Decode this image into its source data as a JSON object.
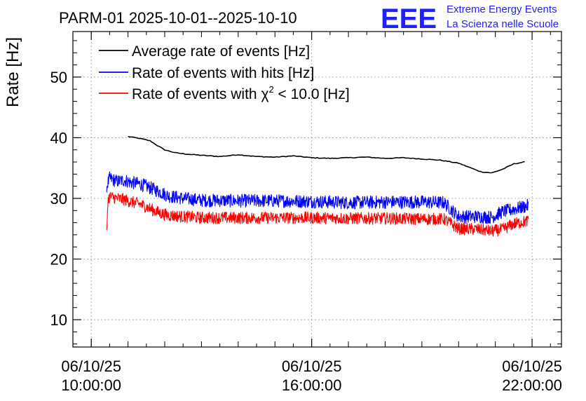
{
  "chart_data": {
    "type": "line",
    "title": "PARM-01 2025-10-01--2025-10-10",
    "ylabel": "Rate [Hz]",
    "xlabel": "",
    "xlim_hours": [
      9.5,
      22.8
    ],
    "ylim": [
      5.5,
      57.5
    ],
    "yticks": [
      10,
      20,
      30,
      40,
      50
    ],
    "xticks": [
      {
        "hour": 10,
        "date": "06/10/25",
        "time": "10:00:00"
      },
      {
        "hour": 16,
        "date": "06/10/25",
        "time": "16:00:00"
      },
      {
        "hour": 22,
        "date": "06/10/25",
        "time": "22:00:00"
      }
    ],
    "grid": true,
    "legend_position": "top-left",
    "series": [
      {
        "name": "Average rate of events [Hz]",
        "color": "#000000",
        "hours": [
          11.0,
          11.3,
          11.6,
          11.8,
          12.0,
          12.3,
          12.6,
          13.0,
          13.5,
          14.0,
          14.5,
          15.0,
          15.5,
          16.0,
          16.5,
          17.0,
          17.5,
          18.0,
          18.5,
          19.0,
          19.5,
          20.0,
          20.3,
          20.6,
          20.9,
          21.2,
          21.5,
          21.8
        ],
        "values": [
          40.2,
          39.9,
          39.5,
          38.7,
          38.0,
          37.5,
          37.3,
          37.1,
          36.9,
          37.2,
          36.9,
          36.8,
          37.0,
          36.7,
          36.6,
          36.7,
          36.8,
          36.6,
          36.7,
          36.5,
          36.3,
          35.8,
          35.1,
          34.4,
          34.2,
          34.8,
          35.7,
          36.0
        ]
      },
      {
        "name": "Rate of events with hits [Hz]",
        "color": "#0000ff",
        "hours": [
          10.42,
          10.5,
          10.7,
          10.9,
          11.1,
          11.3,
          11.5,
          11.7,
          11.9,
          12.1,
          12.5,
          13.0,
          14.0,
          15.0,
          16.0,
          17.0,
          18.0,
          19.0,
          19.6,
          20.0,
          20.5,
          20.9,
          21.2,
          21.5,
          21.9
        ],
        "values": [
          32.0,
          33.3,
          32.8,
          33.0,
          32.6,
          32.4,
          32.0,
          31.5,
          31.0,
          30.4,
          30.0,
          29.7,
          29.6,
          29.6,
          29.5,
          29.3,
          29.4,
          29.4,
          29.3,
          27.0,
          27.0,
          26.9,
          27.8,
          28.2,
          28.8
        ],
        "noise": 1.1
      },
      {
        "name": "Rate of events with χ² < 10.0 [Hz]",
        "legend_prefix": "Rate of events with ",
        "legend_chi": "χ",
        "legend_sup": "2",
        "legend_suffix": " < 10.0 [Hz]",
        "color": "#ff0000",
        "hours": [
          10.42,
          10.45,
          10.5,
          10.7,
          10.9,
          11.1,
          11.3,
          11.5,
          11.7,
          11.9,
          12.1,
          12.5,
          13.0,
          14.0,
          15.0,
          16.0,
          17.0,
          18.0,
          19.0,
          19.6,
          20.0,
          20.5,
          20.9,
          21.2,
          21.5,
          21.9
        ],
        "values": [
          24.0,
          29.5,
          30.3,
          30.0,
          29.8,
          29.4,
          29.1,
          28.6,
          28.0,
          27.5,
          27.2,
          27.0,
          26.8,
          26.8,
          26.8,
          26.8,
          26.7,
          26.7,
          26.6,
          26.6,
          25.0,
          24.9,
          24.6,
          24.9,
          25.8,
          26.3
        ],
        "noise": 1.0
      }
    ]
  },
  "branding": {
    "logo_text": "EEE",
    "line1": "Extreme Energy Events",
    "line2": "La Scienza nelle Scuole",
    "color": "#1f1fff"
  }
}
